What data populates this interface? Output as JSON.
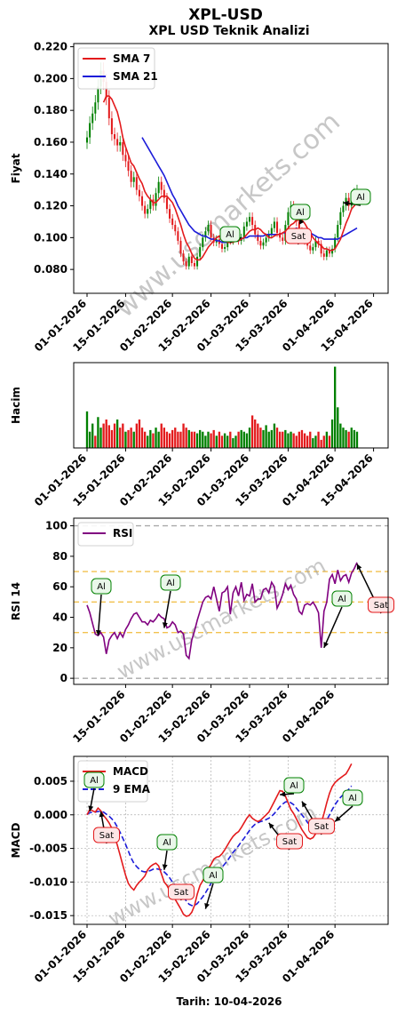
{
  "header": {
    "title": "XPL-USD",
    "subtitle": "XPL USD Teknik Analizi"
  },
  "watermark": "www.uscmarkets.com",
  "footer": {
    "date_label": "Tarih: 10-04-2026"
  },
  "colors": {
    "sma7": "#e31a1c",
    "sma21": "#1c1cd9",
    "up": "#008000",
    "down": "#e31a1c",
    "rsi": "#800080",
    "macd": "#e31a1c",
    "ema9": "#1c1cd9",
    "buy": "#008000",
    "sell": "#e31a1c"
  },
  "chart_data": [
    {
      "type": "candlestick",
      "title": "XPL USD Teknik Analizi",
      "ylabel": "Fiyat",
      "ylim": [
        0.065,
        0.222
      ],
      "yticks": [
        0.08,
        0.1,
        0.12,
        0.14,
        0.16,
        0.18,
        0.2,
        0.22
      ],
      "xticks": [
        "01-01-2026",
        "15-01-2026",
        "01-02-2026",
        "15-02-2026",
        "01-03-2026",
        "15-03-2026",
        "01-04-2026",
        "15-04-2026"
      ],
      "xtick_days": [
        0,
        14,
        31,
        45,
        59,
        73,
        90,
        104
      ],
      "legend": [
        "SMA 7",
        "SMA 21"
      ],
      "legend_position": "top-left",
      "close": [
        0.163,
        0.172,
        0.178,
        0.185,
        0.195,
        0.205,
        0.198,
        0.188,
        0.175,
        0.165,
        0.162,
        0.158,
        0.16,
        0.152,
        0.148,
        0.142,
        0.135,
        0.138,
        0.13,
        0.126,
        0.12,
        0.115,
        0.118,
        0.124,
        0.12,
        0.128,
        0.135,
        0.13,
        0.125,
        0.118,
        0.112,
        0.108,
        0.104,
        0.098,
        0.09,
        0.085,
        0.082,
        0.088,
        0.084,
        0.082,
        0.088,
        0.094,
        0.1,
        0.104,
        0.108,
        0.1,
        0.097,
        0.099,
        0.096,
        0.093,
        0.094,
        0.1,
        0.098,
        0.101,
        0.103,
        0.098,
        0.1,
        0.107,
        0.11,
        0.113,
        0.108,
        0.102,
        0.098,
        0.095,
        0.097,
        0.1,
        0.102,
        0.106,
        0.11,
        0.103,
        0.1,
        0.098,
        0.108,
        0.116,
        0.12,
        0.116,
        0.11,
        0.104,
        0.1,
        0.098,
        0.095,
        0.092,
        0.094,
        0.098,
        0.096,
        0.09,
        0.088,
        0.092,
        0.09,
        0.093,
        0.1,
        0.108,
        0.116,
        0.12,
        0.125,
        0.12,
        0.124,
        0.128,
        0.13
      ],
      "sma7": [
        null,
        null,
        null,
        null,
        null,
        null,
        0.185,
        0.189,
        0.189,
        0.187,
        0.183,
        0.179,
        0.172,
        0.163,
        0.157,
        0.152,
        0.147,
        0.145,
        0.141,
        0.137,
        0.134,
        0.129,
        0.126,
        0.124,
        0.122,
        0.122,
        0.124,
        0.126,
        0.126,
        0.126,
        0.124,
        0.122,
        0.118,
        0.113,
        0.108,
        0.102,
        0.097,
        0.094,
        0.09,
        0.087,
        0.086,
        0.086,
        0.088,
        0.091,
        0.094,
        0.096,
        0.098,
        0.1,
        0.101,
        0.1,
        0.099,
        0.097,
        0.097,
        0.097,
        0.098,
        0.098,
        0.099,
        0.1,
        0.102,
        0.104,
        0.105,
        0.105,
        0.106,
        0.105,
        0.103,
        0.102,
        0.1,
        0.1,
        0.101,
        0.102,
        0.102,
        0.103,
        0.104,
        0.106,
        0.108,
        0.109,
        0.111,
        0.111,
        0.111,
        0.109,
        0.106,
        0.103,
        0.1,
        0.098,
        0.096,
        0.095,
        0.093,
        0.093,
        0.092,
        0.092,
        0.093,
        0.096,
        0.099,
        0.104,
        0.109,
        0.113,
        0.118,
        0.12,
        0.122
      ],
      "sma21": [
        null,
        null,
        null,
        null,
        null,
        null,
        null,
        null,
        null,
        null,
        null,
        null,
        null,
        null,
        null,
        null,
        null,
        null,
        null,
        null,
        0.163,
        0.16,
        0.157,
        0.154,
        0.151,
        0.148,
        0.145,
        0.142,
        0.139,
        0.135,
        0.131,
        0.127,
        0.124,
        0.12,
        0.117,
        0.114,
        0.111,
        0.108,
        0.106,
        0.104,
        0.103,
        0.102,
        0.101,
        0.101,
        0.1,
        0.099,
        0.099,
        0.098,
        0.098,
        0.097,
        0.097,
        0.097,
        0.097,
        0.098,
        0.098,
        0.098,
        0.099,
        0.1,
        0.1,
        0.101,
        0.101,
        0.101,
        0.101,
        0.101,
        0.101,
        0.102,
        0.102,
        0.102,
        0.102,
        0.102,
        0.102,
        0.103,
        0.103,
        0.104,
        0.105,
        0.105,
        0.106,
        0.105,
        0.105,
        0.104,
        0.104,
        0.103,
        0.102,
        0.101,
        0.1,
        0.1,
        0.099,
        0.099,
        0.099,
        0.099,
        0.099,
        0.099,
        0.1,
        0.101,
        0.102,
        0.103,
        0.104,
        0.105,
        0.106
      ],
      "signals": [
        {
          "day": 56,
          "price": 0.1,
          "label": "Al",
          "kind": "buy"
        },
        {
          "day": 77,
          "price": 0.112,
          "label": "Al",
          "kind": "buy"
        },
        {
          "day": 76,
          "price": 0.1,
          "label": "Sat",
          "kind": "sell"
        },
        {
          "day": 93,
          "price": 0.122,
          "label": "Al",
          "kind": "buy"
        }
      ]
    },
    {
      "type": "bar",
      "ylabel": "Hacim",
      "xticks": [
        "01-01-2026",
        "15-01-2026",
        "01-02-2026",
        "15-02-2026",
        "01-03-2026",
        "15-03-2026",
        "01-04-2026",
        "15-04-2026"
      ],
      "xtick_days": [
        0,
        14,
        31,
        45,
        59,
        73,
        90,
        104
      ],
      "volume": [
        0.45,
        0.2,
        0.3,
        0.15,
        0.38,
        0.25,
        0.3,
        0.35,
        0.28,
        0.22,
        0.3,
        0.35,
        0.25,
        0.3,
        0.2,
        0.22,
        0.25,
        0.2,
        0.3,
        0.35,
        0.25,
        0.2,
        0.15,
        0.22,
        0.18,
        0.25,
        0.2,
        0.3,
        0.25,
        0.2,
        0.18,
        0.22,
        0.25,
        0.2,
        0.2,
        0.3,
        0.25,
        0.22,
        0.2,
        0.2,
        0.18,
        0.22,
        0.2,
        0.15,
        0.2,
        0.18,
        0.22,
        0.15,
        0.2,
        0.15,
        0.18,
        0.15,
        0.2,
        0.12,
        0.15,
        0.2,
        0.22,
        0.2,
        0.18,
        0.25,
        0.4,
        0.35,
        0.3,
        0.25,
        0.22,
        0.28,
        0.2,
        0.22,
        0.3,
        0.25,
        0.2,
        0.2,
        0.22,
        0.18,
        0.2,
        0.18,
        0.15,
        0.2,
        0.22,
        0.18,
        0.15,
        0.2,
        0.12,
        0.15,
        0.2,
        0.1,
        0.15,
        0.2,
        0.15,
        0.35,
        1.0,
        0.5,
        0.3,
        0.25,
        0.22,
        0.2,
        0.25,
        0.22,
        0.2
      ],
      "volume_up": [
        1,
        1,
        1,
        0,
        1,
        1,
        0,
        0,
        0,
        0,
        0,
        1,
        0,
        0,
        1,
        0,
        0,
        1,
        0,
        0,
        0,
        0,
        1,
        1,
        0,
        1,
        1,
        0,
        0,
        0,
        0,
        0,
        0,
        0,
        0,
        0,
        0,
        1,
        0,
        0,
        1,
        1,
        1,
        1,
        1,
        0,
        0,
        1,
        0,
        0,
        1,
        1,
        0,
        1,
        1,
        0,
        1,
        1,
        1,
        1,
        0,
        0,
        0,
        0,
        1,
        1,
        1,
        1,
        1,
        0,
        0,
        0,
        1,
        1,
        1,
        0,
        0,
        0,
        0,
        0,
        0,
        0,
        1,
        1,
        0,
        0,
        0,
        1,
        0,
        1,
        1,
        1,
        1,
        1,
        1,
        0,
        1,
        1,
        1
      ]
    },
    {
      "type": "line",
      "ylabel": "RSI 14",
      "ylim": [
        -4,
        105
      ],
      "yticks": [
        0,
        20,
        40,
        60,
        80,
        100
      ],
      "xticks": [
        "15-01-2026",
        "01-02-2026",
        "15-02-2026",
        "01-03-2026",
        "15-03-2026",
        "01-04-2026"
      ],
      "xtick_days": [
        14,
        31,
        45,
        59,
        73,
        90
      ],
      "hlines": [
        0,
        30,
        50,
        70,
        100
      ],
      "legend": [
        "RSI"
      ],
      "legend_position": "top-left",
      "rsi": [
        48,
        43,
        36,
        29,
        28,
        30,
        27,
        16,
        25,
        28,
        30,
        26,
        30,
        27,
        32,
        35,
        39,
        42,
        43,
        40,
        37,
        37,
        35,
        38,
        37,
        39,
        42,
        40,
        39,
        33,
        34,
        37,
        35,
        30,
        31,
        29,
        15,
        13,
        25,
        31,
        38,
        44,
        50,
        53,
        54,
        52,
        60,
        52,
        44,
        56,
        57,
        60,
        42,
        56,
        60,
        54,
        63,
        51,
        55,
        54,
        62,
        50,
        52,
        52,
        58,
        59,
        56,
        63,
        60,
        46,
        50,
        55,
        62,
        58,
        61,
        55,
        52,
        44,
        42,
        48,
        49,
        48,
        50,
        47,
        43,
        20,
        44,
        50,
        65,
        68,
        62,
        71,
        64,
        67,
        68,
        63,
        69,
        72,
        76
      ],
      "rsi_day_start": 0,
      "signals": [
        {
          "day": 4,
          "value": 28,
          "label": "Al",
          "kind": "buy"
        },
        {
          "day": 28,
          "value": 33,
          "label": "Al",
          "kind": "buy"
        },
        {
          "day": 86,
          "value": 20,
          "label": "Al",
          "kind": "buy"
        },
        {
          "day": 98,
          "value": 75,
          "label": "Sat",
          "kind": "sell"
        }
      ]
    },
    {
      "type": "line",
      "ylabel": "MACD",
      "ylim": [
        -0.0163,
        0.0087
      ],
      "yticks": [
        -0.015,
        -0.01,
        -0.005,
        0.0,
        0.005
      ],
      "xticks": [
        "01-01-2026",
        "15-01-2026",
        "01-02-2026",
        "15-02-2026",
        "01-03-2026",
        "15-03-2026",
        "01-04-2026"
      ],
      "xtick_days": [
        0,
        14,
        31,
        45,
        59,
        73,
        90
      ],
      "xlabel": "Tarih: 10-04-2026",
      "legend": [
        "MACD",
        "9 EMA"
      ],
      "legend_position": "top-left",
      "macd": [
        0.0,
        0.0008,
        0.0006,
        0.0004,
        0.001,
        0.0006,
        -0.0001,
        -0.0006,
        -0.0012,
        -0.002,
        -0.0032,
        -0.0045,
        -0.006,
        -0.0075,
        -0.009,
        -0.0102,
        -0.0108,
        -0.0112,
        -0.0105,
        -0.01,
        -0.0096,
        -0.0091,
        -0.0082,
        -0.0077,
        -0.0074,
        -0.0072,
        -0.0076,
        -0.0088,
        -0.01,
        -0.0105,
        -0.0113,
        -0.012,
        -0.0126,
        -0.0133,
        -0.014,
        -0.0148,
        -0.0151,
        -0.015,
        -0.0145,
        -0.0135,
        -0.0118,
        -0.0105,
        -0.0098,
        -0.009,
        -0.008,
        -0.0074,
        -0.0066,
        -0.0063,
        -0.0062,
        -0.0058,
        -0.0052,
        -0.0045,
        -0.0038,
        -0.0032,
        -0.0028,
        -0.0025,
        -0.0019,
        -0.0012,
        -0.0005,
        0.0,
        -0.0005,
        -0.0008,
        -0.001,
        -0.0008,
        -0.0004,
        0.0,
        0.0004,
        0.0012,
        0.002,
        0.0028,
        0.0036,
        0.0035,
        0.0028,
        0.0018,
        0.0008,
        0.0002,
        -0.0006,
        -0.0014,
        -0.0022,
        -0.0028,
        -0.0034,
        -0.0036,
        -0.0034,
        -0.0028,
        -0.002,
        -0.0012,
        0.0002,
        0.0018,
        0.0032,
        0.0042,
        0.0048,
        0.0052,
        0.0055,
        0.0058,
        0.0061,
        0.0068,
        0.0076
      ],
      "ema9": [
        0.0001,
        0.0003,
        0.0004,
        0.0004,
        0.0005,
        0.0005,
        0.0004,
        0.0001,
        -0.0002,
        -0.0006,
        -0.0011,
        -0.0018,
        -0.0026,
        -0.0035,
        -0.0044,
        -0.0054,
        -0.0064,
        -0.0072,
        -0.0077,
        -0.0081,
        -0.0084,
        -0.0085,
        -0.0084,
        -0.0083,
        -0.0081,
        -0.008,
        -0.0081,
        -0.0082,
        -0.0085,
        -0.0089,
        -0.0094,
        -0.01,
        -0.0105,
        -0.0111,
        -0.0117,
        -0.0123,
        -0.0128,
        -0.0133,
        -0.0135,
        -0.0135,
        -0.0132,
        -0.0127,
        -0.0122,
        -0.0116,
        -0.0109,
        -0.0102,
        -0.0095,
        -0.0088,
        -0.0083,
        -0.0078,
        -0.0073,
        -0.0068,
        -0.0062,
        -0.0056,
        -0.0051,
        -0.0046,
        -0.004,
        -0.0035,
        -0.0029,
        -0.0023,
        -0.0018,
        -0.0014,
        -0.0012,
        -0.001,
        -0.0009,
        -0.0007,
        -0.0005,
        -0.0002,
        0.0002,
        0.0007,
        0.0012,
        0.0016,
        0.0019,
        0.002,
        0.0018,
        0.0015,
        0.001,
        0.0005,
        0.0,
        -0.0005,
        -0.0011,
        -0.0016,
        -0.002,
        -0.0023,
        -0.0022,
        -0.002,
        -0.0015,
        -0.0008,
        0.0,
        0.0008,
        0.0015,
        0.0021,
        0.0026,
        0.003,
        0.0034,
        0.0038,
        0.0043
      ],
      "signals": [
        {
          "day": 1,
          "value": 0.0005,
          "label": "Al",
          "kind": "buy"
        },
        {
          "day": 5,
          "value": 0.0005,
          "label": "Sat",
          "kind": "sell"
        },
        {
          "day": 28,
          "value": -0.0082,
          "label": "Al",
          "kind": "buy"
        },
        {
          "day": 33,
          "value": -0.0108,
          "label": "Sat",
          "kind": "sell"
        },
        {
          "day": 43,
          "value": -0.014,
          "label": "Al",
          "kind": "buy"
        },
        {
          "day": 66,
          "value": -0.0012,
          "label": "Sat",
          "kind": "sell"
        },
        {
          "day": 70,
          "value": 0.003,
          "label": "Al",
          "kind": "buy"
        },
        {
          "day": 78,
          "value": 0.002,
          "label": "Sat",
          "kind": "sell"
        },
        {
          "day": 90,
          "value": -0.001,
          "label": "Al",
          "kind": "buy"
        }
      ]
    }
  ]
}
